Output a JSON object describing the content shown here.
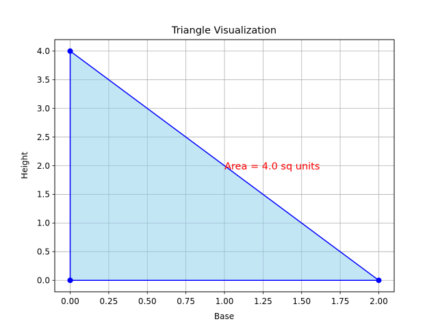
{
  "chart_data": {
    "type": "line",
    "title": "Triangle Visualization",
    "xlabel": "Base",
    "ylabel": "Height",
    "xlim": [
      -0.1,
      2.1
    ],
    "ylim": [
      -0.2,
      4.2
    ],
    "x_ticks": [
      0.0,
      0.25,
      0.5,
      0.75,
      1.0,
      1.25,
      1.5,
      1.75,
      2.0
    ],
    "x_tick_labels": [
      "0.00",
      "0.25",
      "0.50",
      "0.75",
      "1.00",
      "1.25",
      "1.50",
      "1.75",
      "2.00"
    ],
    "y_ticks": [
      0.0,
      0.5,
      1.0,
      1.5,
      2.0,
      2.5,
      3.0,
      3.5,
      4.0
    ],
    "y_tick_labels": [
      "0.0",
      "0.5",
      "1.0",
      "1.5",
      "2.0",
      "2.5",
      "3.0",
      "3.5",
      "4.0"
    ],
    "grid": true,
    "series": [
      {
        "x": [
          0,
          2,
          0,
          0
        ],
        "y": [
          0,
          0,
          4,
          0
        ],
        "color": "#0000ff",
        "fill_color": "#87ceeb",
        "marker": "circle"
      }
    ],
    "annotations": [
      {
        "text": "Area = 4.0 sq units",
        "x": 1.0,
        "y": 2.0,
        "color": "#ff0000"
      }
    ]
  }
}
